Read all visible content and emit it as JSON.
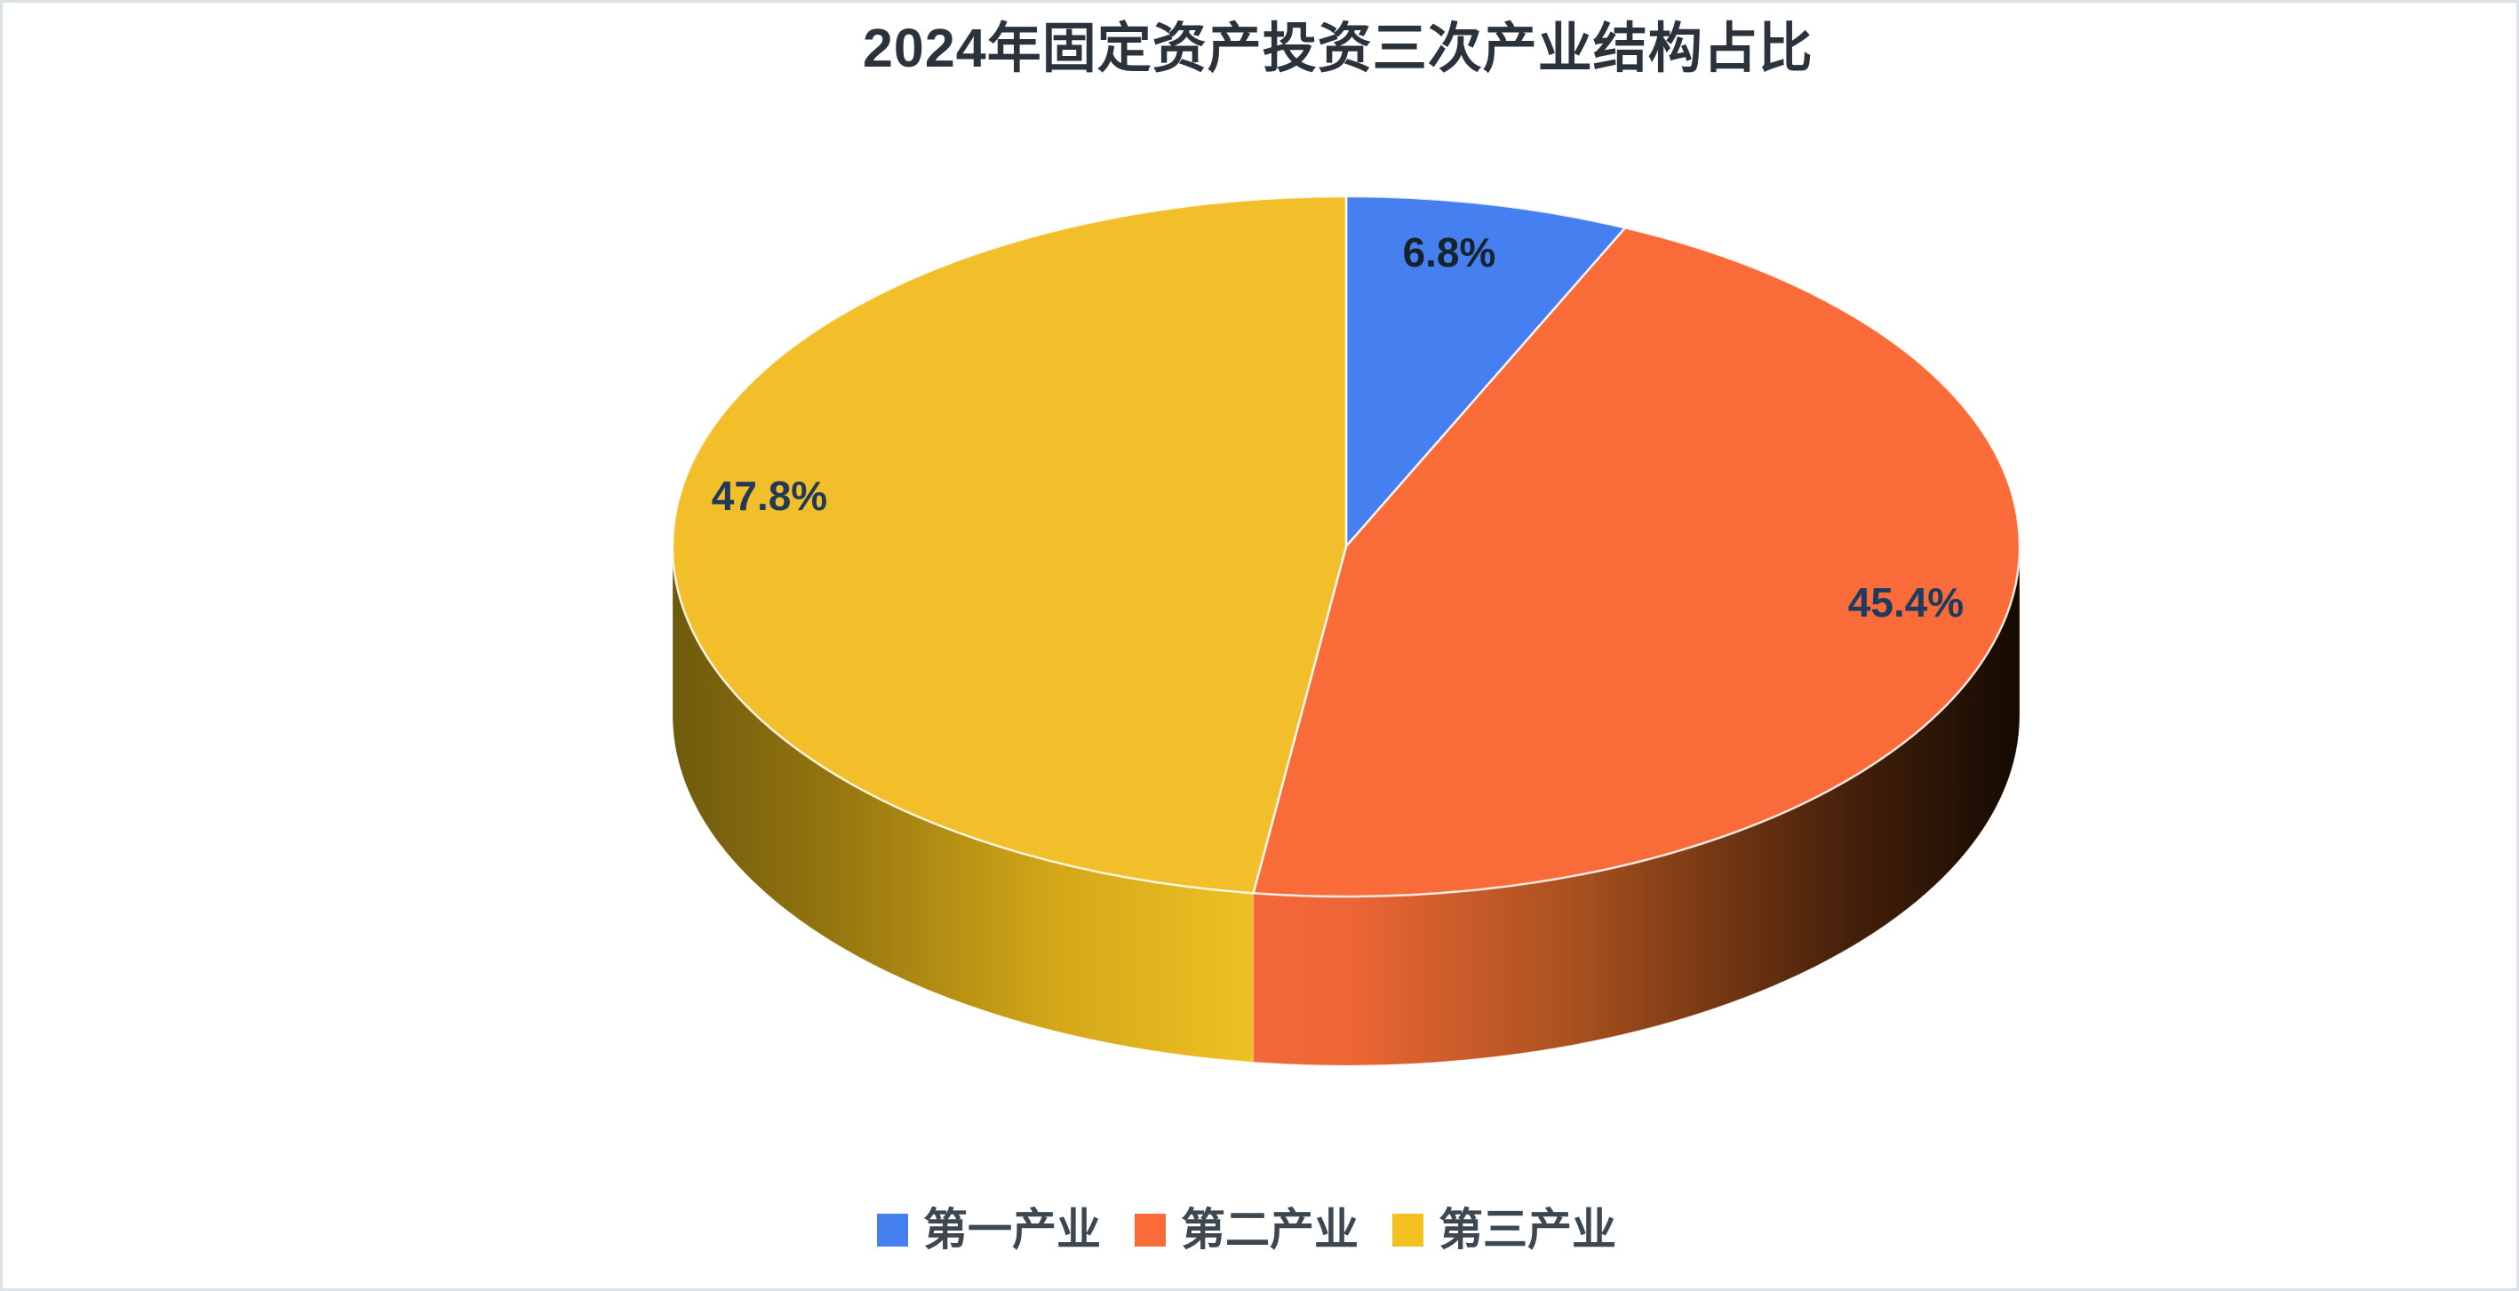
{
  "page": {
    "background": "#ffffff",
    "border_color": "#dbe3e7"
  },
  "title": {
    "text": "2024年固定资产投资三次产业结构占比",
    "color": "#2a323c"
  },
  "chart_data": {
    "type": "pie",
    "style": "3d-cylinder",
    "direction": "clockwise",
    "start_angle": "12-oclock",
    "legend_position": "bottom",
    "title": "2024年固定资产投资三次产业结构占比",
    "categories": [
      "第一产业",
      "第二产业",
      "第三产业"
    ],
    "values": [
      6.8,
      45.4,
      47.8
    ],
    "unit": "%",
    "slices": [
      {
        "key": "primary-industry",
        "name": "第一产业",
        "value": 6.8,
        "label": "6.8%",
        "color": "#4680F0",
        "label_color": "#15232d"
      },
      {
        "key": "secondary-industry",
        "name": "第二产业",
        "value": 45.4,
        "label": "45.4%",
        "color": "#F96C3A",
        "label_color": "#1e3a5f",
        "side_stops": [
          [
            "0%",
            "#140a02"
          ],
          [
            "22%",
            "#45200a"
          ],
          [
            "58%",
            "#a8511f"
          ],
          [
            "88%",
            "#ee6635"
          ],
          [
            "100%",
            "#f4683a"
          ]
        ]
      },
      {
        "key": "tertiary-industry",
        "name": "第三产业",
        "value": 47.8,
        "label": "47.8%",
        "color": "#F2BF2B",
        "label_color": "#22395a",
        "side_stops": [
          [
            "0%",
            "#eec124"
          ],
          [
            "35%",
            "#d2a618"
          ],
          [
            "72%",
            "#95760f"
          ],
          [
            "100%",
            "#6f5a0d"
          ]
        ]
      }
    ]
  },
  "legend": {
    "items": [
      {
        "label": "第一产业",
        "color": "#4680F0"
      },
      {
        "label": "第二产业",
        "color": "#F96C3A"
      },
      {
        "label": "第三产业",
        "color": "#F2C01F"
      }
    ]
  }
}
